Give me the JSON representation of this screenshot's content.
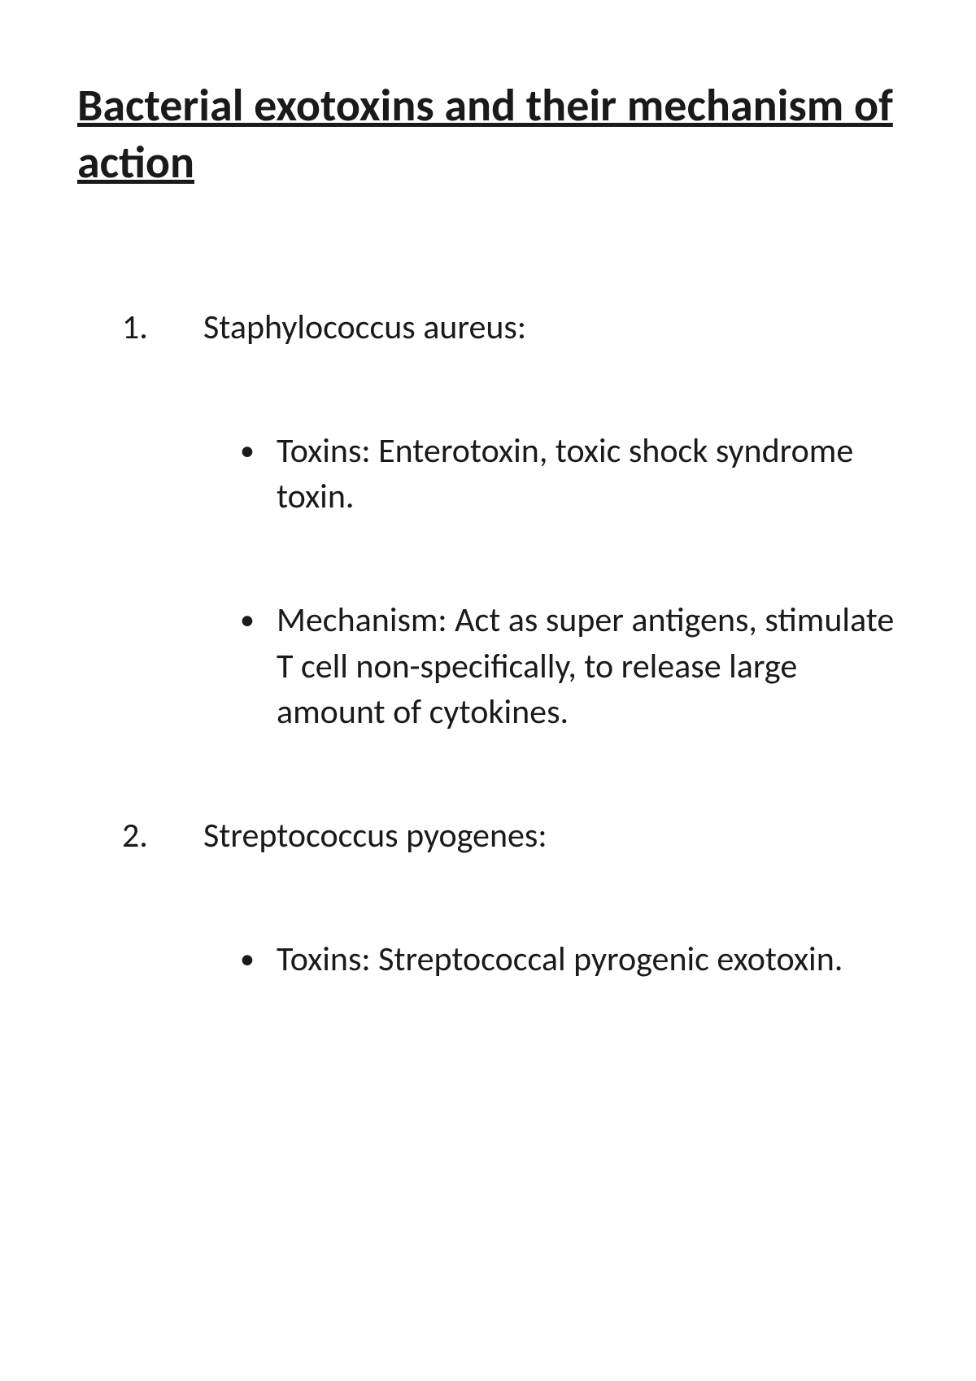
{
  "title": "Bacterial exotoxins and their mechanism of action",
  "items": [
    {
      "number": "1.",
      "heading": "Staphylococcus aureus:",
      "bullets": [
        "Toxins: Enterotoxin, toxic shock syndrome toxin.",
        " Mechanism: Act as super antigens, stimulate T cell non-specifically, to release large amount of cytokines."
      ]
    },
    {
      "number": "2.",
      "heading": "Streptococcus pyogenes:",
      "bullets": [
        "Toxins: Streptococcal pyrogenic exotoxin."
      ]
    }
  ],
  "colors": {
    "background": "#ffffff",
    "text": "#1a1a1a"
  },
  "typography": {
    "title_fontsize": 56,
    "title_weight": 700,
    "body_fontsize": 42,
    "body_weight": 400,
    "font_family": "Calibri"
  }
}
